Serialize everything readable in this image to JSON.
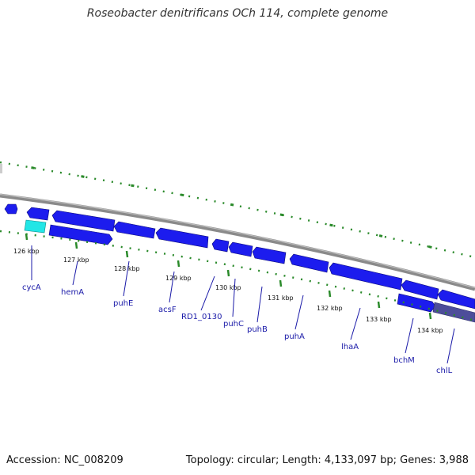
{
  "header": {
    "title": "Roseobacter denitrificans OCh 114, complete genome"
  },
  "footer": {
    "accession": "Accession: NC_008209",
    "summary": "Topology: circular; Length: 4,133,097 bp; Genes: 3,988"
  },
  "ticks": [
    "126 kbp",
    "127 kbp",
    "128 kbp",
    "129 kbp",
    "130 kbp",
    "131 kbp",
    "132 kbp",
    "133 kbp",
    "134 kbp"
  ],
  "genes": [
    "cycA",
    "hemA",
    "puhE",
    "acsF",
    "RD1_0130",
    "puhC",
    "puhB",
    "puhA",
    "lhaA",
    "bchM",
    "chlL"
  ],
  "colors": {
    "gene": "#1c1cee",
    "rna_highlight": "#22e6e6",
    "backbone": "#8a8a8a",
    "scale": "#2a8a2a",
    "label": "#1a1aa8",
    "selected": "#4d4d9a"
  }
}
